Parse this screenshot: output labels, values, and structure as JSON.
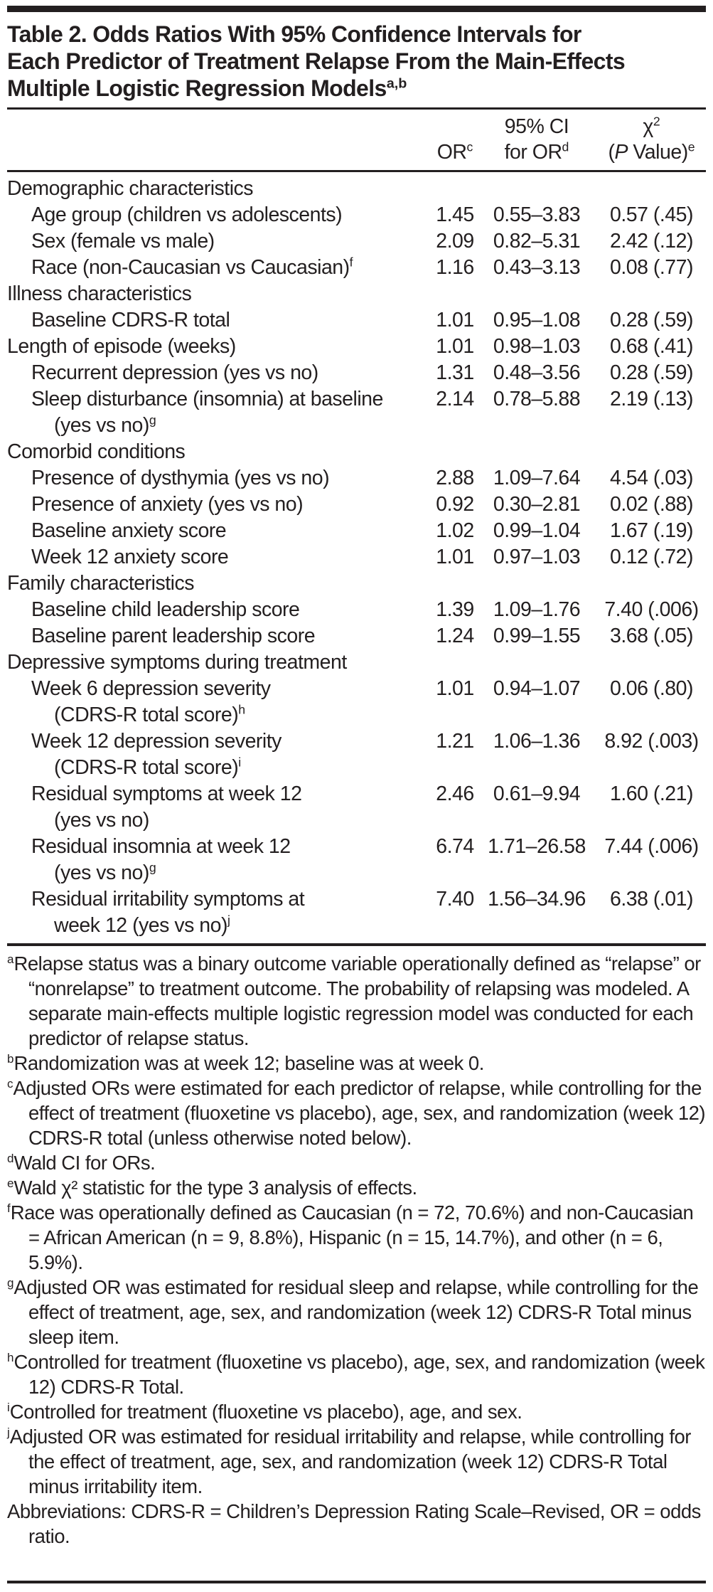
{
  "table": {
    "title_lines": [
      "Table 2. Odds Ratios With 95% Confidence Intervals for",
      "Each Predictor of Treatment Relapse From the Main-Effects",
      "Multiple Logistic Regression Models"
    ],
    "title_sup": "a,b",
    "header": {
      "or": {
        "text": "OR",
        "sup": "c"
      },
      "ci": {
        "line1": "95% CI",
        "line2_text": "for OR",
        "line2_sup": "d"
      },
      "chi": {
        "line1_text": "χ",
        "line1_sup": "2",
        "line2_pre": "(",
        "line2_italic": "P",
        "line2_post": " Value)",
        "line2_sup": "e"
      }
    },
    "rows": [
      {
        "indent": "section",
        "label": "Demographic characteristics"
      },
      {
        "indent": "item",
        "label": "Age group (children vs adolescents)",
        "or": "1.45",
        "ci": "0.55–3.83",
        "chi": "0.57 (.45)"
      },
      {
        "indent": "item",
        "label": "Sex (female vs male)",
        "or": "2.09",
        "ci": "0.82–5.31",
        "chi": "2.42 (.12)"
      },
      {
        "indent": "item",
        "label": "Race (non-Caucasian vs Caucasian)",
        "sup": "f",
        "or": "1.16",
        "ci": "0.43–3.13",
        "chi": "0.08 (.77)"
      },
      {
        "indent": "section",
        "label": "Illness characteristics"
      },
      {
        "indent": "item",
        "label": "Baseline CDRS-R total",
        "or": "1.01",
        "ci": "0.95–1.08",
        "chi": "0.28 (.59)"
      },
      {
        "indent": "section",
        "label": "Length of episode (weeks)",
        "or": "1.01",
        "ci": "0.98–1.03",
        "chi": "0.68 (.41)"
      },
      {
        "indent": "item",
        "label": "Recurrent depression (yes vs no)",
        "or": "1.31",
        "ci": "0.48–3.56",
        "chi": "0.28 (.59)"
      },
      {
        "indent": "item",
        "label": "Sleep disturbance (insomnia) at baseline",
        "cont": "(yes vs no)",
        "cont_sup": "g",
        "or": "2.14",
        "ci": "0.78–5.88",
        "chi": "2.19 (.13)"
      },
      {
        "indent": "section",
        "label": "Comorbid conditions"
      },
      {
        "indent": "item",
        "label": "Presence of dysthymia (yes vs no)",
        "or": "2.88",
        "ci": "1.09–7.64",
        "chi": "4.54 (.03)"
      },
      {
        "indent": "item",
        "label": "Presence of anxiety (yes vs no)",
        "or": "0.92",
        "ci": "0.30–2.81",
        "chi": "0.02 (.88)"
      },
      {
        "indent": "item",
        "label": "Baseline anxiety score",
        "or": "1.02",
        "ci": "0.99–1.04",
        "chi": "1.67 (.19)"
      },
      {
        "indent": "item",
        "label": "Week 12 anxiety score",
        "or": "1.01",
        "ci": "0.97–1.03",
        "chi": "0.12 (.72)"
      },
      {
        "indent": "section",
        "label": "Family characteristics"
      },
      {
        "indent": "item",
        "label": "Baseline child leadership score",
        "or": "1.39",
        "ci": "1.09–1.76",
        "chi": "7.40 (.006)"
      },
      {
        "indent": "item",
        "label": "Baseline parent leadership score",
        "or": "1.24",
        "ci": "0.99–1.55",
        "chi": "3.68 (.05)"
      },
      {
        "indent": "section",
        "label": "Depressive symptoms during treatment"
      },
      {
        "indent": "item",
        "label": "Week 6 depression severity",
        "cont": "(CDRS-R total score)",
        "cont_sup": "h",
        "or": "1.01",
        "ci": "0.94–1.07",
        "chi": "0.06 (.80)"
      },
      {
        "indent": "item",
        "label": "Week 12 depression severity",
        "cont": "(CDRS-R total score)",
        "cont_sup": "i",
        "or": "1.21",
        "ci": "1.06–1.36",
        "chi": "8.92 (.003)"
      },
      {
        "indent": "item",
        "label": "Residual symptoms at week 12",
        "cont": "(yes vs no)",
        "or": "2.46",
        "ci": "0.61–9.94",
        "chi": "1.60 (.21)"
      },
      {
        "indent": "item",
        "label": "Residual insomnia at week 12",
        "cont": "(yes vs no)",
        "cont_sup": "g",
        "or": "6.74",
        "ci": "1.71–26.58",
        "chi": "7.44 (.006)"
      },
      {
        "indent": "item",
        "label": "Residual irritability symptoms at",
        "cont": "week 12 (yes vs no)",
        "cont_sup": "j",
        "or": "7.40",
        "ci": "1.56–34.96",
        "chi": "6.38 (.01)"
      }
    ]
  },
  "footnotes": [
    {
      "sup": "a",
      "text": "Relapse status was a binary outcome variable operationally defined as “relapse” or “nonrelapse” to treatment outcome. The probability of relapsing was modeled. A separate main-effects multiple logistic regression model was conducted for each predictor of relapse status."
    },
    {
      "sup": "b",
      "text": "Randomization was at week 12; baseline was at week 0."
    },
    {
      "sup": "c",
      "text": "Adjusted ORs were estimated for each predictor of relapse, while controlling for the effect of treatment (fluoxetine vs placebo), age, sex, and randomization (week 12) CDRS-R total (unless otherwise noted below)."
    },
    {
      "sup": "d",
      "text": "Wald CI for ORs."
    },
    {
      "sup": "e",
      "text": "Wald χ² statistic for the type 3 analysis of effects."
    },
    {
      "sup": "f",
      "text": "Race was operationally defined as Caucasian (n = 72, 70.6%) and non-Caucasian = African American (n = 9, 8.8%), Hispanic (n = 15, 14.7%), and other (n = 6, 5.9%)."
    },
    {
      "sup": "g",
      "text": "Adjusted OR was estimated for residual sleep and relapse, while controlling for the effect of treatment, age, sex, and randomization (week 12) CDRS-R Total minus sleep item."
    },
    {
      "sup": "h",
      "text": "Controlled for treatment (fluoxetine vs placebo), age, sex, and randomization (week 12) CDRS-R Total."
    },
    {
      "sup": "i",
      "text": "Controlled for treatment (fluoxetine vs placebo), age, and sex."
    },
    {
      "sup": "j",
      "text": "Adjusted OR was estimated for residual irritability and relapse, while controlling for the effect of treatment, age, sex, and randomization (week 12) CDRS-R Total minus irritability item."
    },
    {
      "sup": "",
      "text": "Abbreviations: CDRS-R = Children’s Depression Rating Scale–Revised, OR = odds ratio."
    }
  ]
}
